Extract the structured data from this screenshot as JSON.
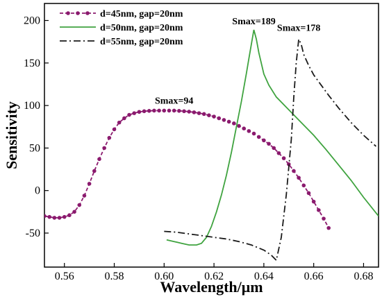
{
  "chart_data": {
    "type": "line",
    "xlabel": "Wavelength/μm",
    "ylabel": "Sensitivity",
    "xlim": [
      0.552,
      0.686
    ],
    "ylim": [
      -90,
      220
    ],
    "xticks": [
      0.56,
      0.58,
      0.6,
      0.62,
      0.64,
      0.66,
      0.68
    ],
    "yticks": [
      -50,
      0,
      50,
      100,
      150,
      200
    ],
    "xtick_labels": [
      "0.56",
      "0.58",
      "0.60",
      "0.62",
      "0.64",
      "0.66",
      "0.68"
    ],
    "ytick_labels": [
      "-50",
      "0",
      "50",
      "100",
      "150",
      "200"
    ],
    "grid": false,
    "legend_position": "top-left",
    "series": [
      {
        "name": "d=45nm, gap=20nm",
        "color": "#8b1a6e",
        "style": "dashed-dot-markers",
        "x": [
          0.552,
          0.554,
          0.556,
          0.558,
          0.56,
          0.562,
          0.564,
          0.566,
          0.568,
          0.57,
          0.572,
          0.574,
          0.576,
          0.578,
          0.58,
          0.582,
          0.584,
          0.586,
          0.588,
          0.59,
          0.592,
          0.594,
          0.596,
          0.598,
          0.6,
          0.602,
          0.604,
          0.606,
          0.608,
          0.61,
          0.612,
          0.614,
          0.616,
          0.618,
          0.62,
          0.622,
          0.624,
          0.626,
          0.628,
          0.63,
          0.632,
          0.634,
          0.636,
          0.638,
          0.64,
          0.642,
          0.644,
          0.646,
          0.648,
          0.65,
          0.652,
          0.654,
          0.656,
          0.658,
          0.66,
          0.662,
          0.664,
          0.666
        ],
        "y": [
          -30,
          -31,
          -32,
          -32,
          -31,
          -29,
          -25,
          -17,
          -6,
          8,
          23,
          37,
          50,
          62,
          72,
          80,
          85,
          89,
          91,
          92.5,
          93.3,
          93.7,
          94,
          94,
          94,
          94,
          94,
          93.7,
          93.3,
          92.8,
          92,
          91,
          90,
          88.5,
          87,
          85,
          83,
          81,
          79,
          76,
          73,
          70,
          67,
          63,
          59,
          55,
          50,
          44,
          38,
          31,
          23,
          15,
          6,
          -3,
          -13,
          -23,
          -33,
          -44
        ]
      },
      {
        "name": "d=50nm, gap=20nm",
        "color": "#3fa33f",
        "style": "solid",
        "x": [
          0.601,
          0.604,
          0.607,
          0.61,
          0.613,
          0.615,
          0.617,
          0.619,
          0.621,
          0.623,
          0.625,
          0.627,
          0.629,
          0.631,
          0.633,
          0.634,
          0.635,
          0.636,
          0.637,
          0.638,
          0.64,
          0.642,
          0.645,
          0.65,
          0.655,
          0.66,
          0.665,
          0.67,
          0.675,
          0.68,
          0.686
        ],
        "y": [
          -58,
          -60,
          -62,
          -64,
          -64,
          -62,
          -55,
          -42,
          -25,
          -5,
          18,
          45,
          75,
          105,
          138,
          155,
          172,
          189,
          178,
          162,
          137,
          124,
          110,
          95,
          80,
          65,
          48,
          30,
          12,
          -8,
          -30
        ]
      },
      {
        "name": "d=55nm, gap=20nm",
        "color": "#1a1a1a",
        "style": "dash-dot",
        "x": [
          0.6,
          0.605,
          0.61,
          0.615,
          0.62,
          0.625,
          0.63,
          0.635,
          0.64,
          0.643,
          0.645,
          0.647,
          0.649,
          0.651,
          0.652,
          0.653,
          0.654,
          0.655,
          0.656,
          0.658,
          0.66,
          0.663,
          0.666,
          0.67,
          0.675,
          0.68,
          0.685
        ],
        "y": [
          -48,
          -49,
          -51,
          -53,
          -55,
          -57,
          -60,
          -64,
          -70,
          -76,
          -82,
          -55,
          -5,
          60,
          110,
          150,
          178,
          172,
          160,
          147,
          136,
          124,
          112,
          97,
          80,
          65,
          52
        ]
      }
    ],
    "annotations": [
      {
        "text": "Smax=94",
        "x": 0.604,
        "y": 94
      },
      {
        "text": "Smax=189",
        "x": 0.636,
        "y": 189
      },
      {
        "text": "Smax=178",
        "x": 0.654,
        "y": 178
      }
    ]
  }
}
